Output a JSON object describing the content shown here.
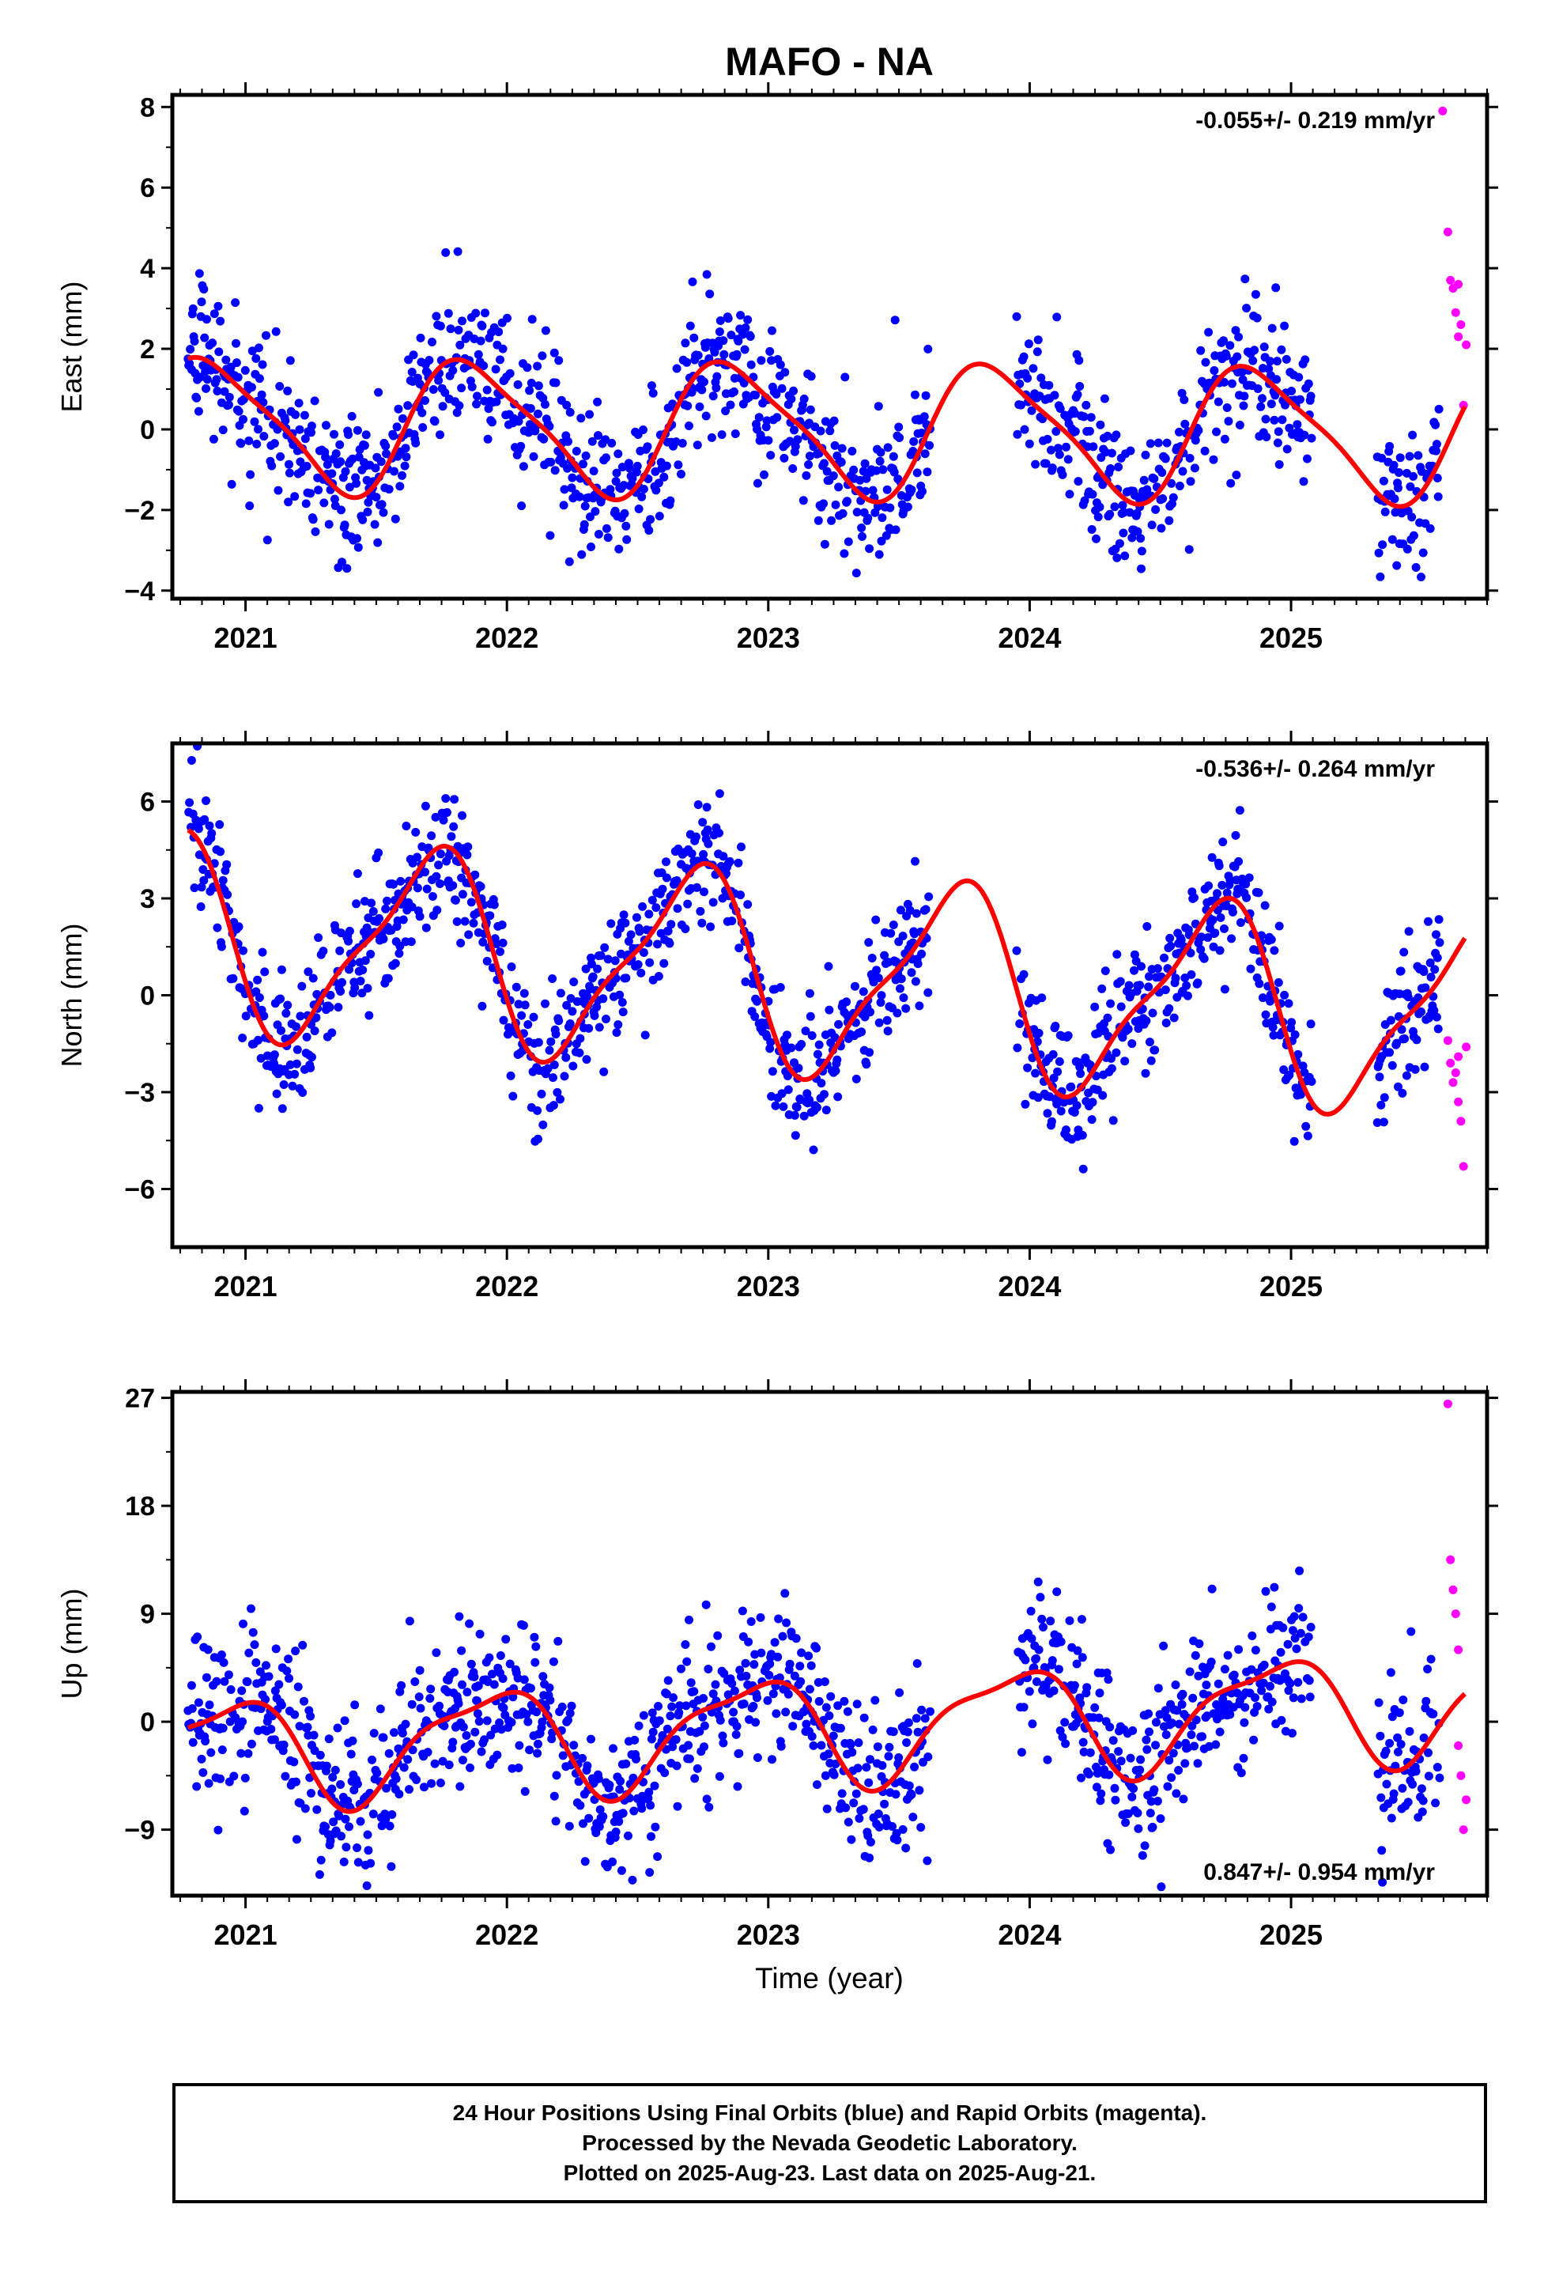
{
  "colors": {
    "final": "#0000ff",
    "rapid": "#ff00ff",
    "fit": "#ff0000",
    "frame": "#000000"
  },
  "chart_data": [
    {
      "type": "scatter",
      "title": "MAFO - NA",
      "xlabel": "",
      "ylabel": "East (mm)",
      "xlim": [
        2020.72,
        2025.75
      ],
      "ylim": [
        -4.2,
        8.3
      ],
      "yticks": [
        -4,
        -2,
        0,
        2,
        4,
        6,
        8
      ],
      "ytick_labels": [
        "−4",
        "−2",
        "0",
        "2",
        "4",
        "6",
        "8"
      ],
      "xticks": [
        2021,
        2022,
        2023,
        2024,
        2025
      ],
      "xtick_labels": [
        "2021",
        "2022",
        "2023",
        "2024",
        "2025"
      ],
      "rate_text": "-0.055+/- 0.219 mm/yr",
      "rate_position": "top-right",
      "series_model": {
        "mean": 0.0,
        "amp1": 1.6,
        "phase1": 0.62,
        "amp2": 0.35,
        "phase2": 0.1,
        "trend": -0.055,
        "noise": 0.9
      },
      "gaps": [
        [
          2023.62,
          2023.95
        ],
        [
          2025.08,
          2025.33
        ]
      ],
      "rapid": {
        "x": [
          2025.58,
          2025.6,
          2025.61,
          2025.62,
          2025.63,
          2025.64,
          2025.64,
          2025.65,
          2025.66,
          2025.67
        ],
        "y": [
          7.9,
          4.9,
          3.7,
          3.5,
          2.9,
          3.6,
          2.3,
          2.6,
          0.6,
          2.1
        ]
      },
      "grid": false
    },
    {
      "type": "scatter",
      "title": "",
      "xlabel": "",
      "ylabel": "North (mm)",
      "xlim": [
        2020.72,
        2025.75
      ],
      "ylim": [
        -7.8,
        7.8
      ],
      "yticks": [
        -6,
        -3,
        0,
        3,
        6
      ],
      "ytick_labels": [
        "−6",
        "−3",
        "0",
        "3",
        "6"
      ],
      "xticks": [
        2021,
        2022,
        2023,
        2024,
        2025
      ],
      "xtick_labels": [
        "2021",
        "2022",
        "2023",
        "2024",
        "2025"
      ],
      "rate_text": "-0.536+/- 0.264 mm/yr",
      "rate_position": "top-right",
      "series_model": {
        "mean": 0.6,
        "amp1": 2.9,
        "phase1": 0.45,
        "amp2": 0.8,
        "phase2": 0.2,
        "trend": -0.536,
        "noise": 1.0
      },
      "gaps": [
        [
          2023.62,
          2023.95
        ],
        [
          2025.08,
          2025.33
        ]
      ],
      "rapid": {
        "x": [
          2025.6,
          2025.61,
          2025.62,
          2025.63,
          2025.64,
          2025.64,
          2025.65,
          2025.66,
          2025.67
        ],
        "y": [
          -1.4,
          -2.1,
          -2.7,
          -2.4,
          -3.3,
          -1.9,
          -3.9,
          -5.3,
          -1.6
        ]
      },
      "grid": false
    },
    {
      "type": "scatter",
      "title": "",
      "xlabel": "Time (year)",
      "ylabel": "Up (mm)",
      "xlim": [
        2020.72,
        2025.75
      ],
      "ylim": [
        -14.5,
        27.5
      ],
      "yticks": [
        -9,
        0,
        9,
        18,
        27
      ],
      "ytick_labels": [
        "−9",
        "0",
        "9",
        "18",
        "27"
      ],
      "xticks": [
        2021,
        2022,
        2023,
        2024,
        2025
      ],
      "xtick_labels": [
        "2021",
        "2022",
        "2023",
        "2024",
        "2025"
      ],
      "rate_text": "0.847+/- 0.954 mm/yr",
      "rate_position": "bottom-right",
      "series_model": {
        "mean": -0.5,
        "amp1": 4.3,
        "phase1": 0.68,
        "amp2": 1.3,
        "phase2": 0.5,
        "trend": 0.847,
        "noise": 3.3
      },
      "gaps": [
        [
          2023.62,
          2023.95
        ],
        [
          2025.08,
          2025.33
        ]
      ],
      "rapid": {
        "x": [
          2025.6,
          2025.61,
          2025.62,
          2025.63,
          2025.64,
          2025.64,
          2025.65,
          2025.66,
          2025.67
        ],
        "y": [
          26.5,
          13.5,
          11.0,
          9.0,
          6.0,
          -2.0,
          -4.5,
          -9.0,
          -6.5
        ]
      },
      "grid": false
    }
  ],
  "caption": {
    "line1": "24 Hour Positions Using Final Orbits (blue) and Rapid Orbits (magenta).",
    "line2": "Processed by the Nevada Geodetic Laboratory.",
    "line3": "Plotted on 2025-Aug-23. Last data on 2025-Aug-21."
  }
}
